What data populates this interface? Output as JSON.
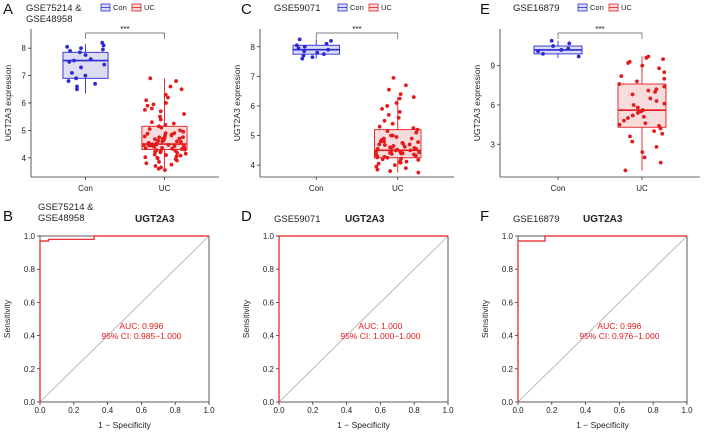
{
  "colors": {
    "con": "#2b2bd6",
    "uc": "#e41a1c",
    "box_con_fill": "#dcdcf3",
    "box_uc_fill": "#f8dcdc",
    "roc": "#e41a1c",
    "diag": "#aaaaaa"
  },
  "legend": {
    "con": "Con",
    "uc": "UC"
  },
  "significance": "***",
  "boxplot_xlabels": [
    "Con",
    "UC"
  ],
  "roc_common": {
    "gene": "UGT2A3",
    "xlabel": "1 − Specificity",
    "ylabel": "Sensitivity",
    "xticks": [
      "0.0",
      "0.2",
      "0.4",
      "0.6",
      "0.8",
      "1.0"
    ],
    "yticks": [
      "0.0",
      "0.2",
      "0.4",
      "0.6",
      "0.8",
      "1.0"
    ]
  },
  "chart_data": [
    {
      "panel": "A",
      "type": "box",
      "dataset_lines": [
        "GSE75214 &",
        "GSE48958"
      ],
      "ylabel": "UGT2A3 expression",
      "ylim": [
        3.3,
        8.7
      ],
      "yticks": [
        "4",
        "5",
        "6",
        "7",
        "8"
      ],
      "categories": [
        "Con",
        "UC"
      ],
      "boxes": [
        {
          "q1": 6.9,
          "median": 7.55,
          "q3": 7.85,
          "whisker_low": 6.35,
          "whisker_high": 8.15
        },
        {
          "q1": 4.3,
          "median": 4.5,
          "q3": 5.15,
          "whisker_low": 3.6,
          "whisker_high": 6.9
        }
      ],
      "points": [
        [
          8.2,
          8.1,
          8.05,
          8.0,
          7.95,
          7.9,
          7.85,
          7.75,
          7.6,
          7.55,
          7.5,
          7.4,
          7.3,
          7.1,
          7.0,
          6.9,
          6.8,
          6.7,
          6.6,
          6.5
        ],
        [
          6.9,
          6.8,
          6.6,
          6.5,
          6.3,
          6.2,
          6.1,
          6.0,
          5.95,
          5.9,
          5.8,
          5.75,
          5.7,
          5.6,
          5.5,
          5.4,
          5.3,
          5.25,
          5.2,
          5.15,
          5.1,
          5.05,
          5.0,
          4.95,
          4.9,
          4.88,
          4.85,
          4.82,
          4.8,
          4.78,
          4.75,
          4.72,
          4.7,
          4.68,
          4.65,
          4.62,
          4.6,
          4.58,
          4.55,
          4.53,
          4.5,
          4.5,
          4.48,
          4.47,
          4.46,
          4.45,
          4.43,
          4.42,
          4.4,
          4.38,
          4.36,
          4.35,
          4.33,
          4.32,
          4.3,
          4.28,
          4.26,
          4.25,
          4.22,
          4.2,
          4.18,
          4.15,
          4.12,
          4.1,
          4.08,
          4.05,
          4.02,
          4.0,
          3.98,
          3.95,
          3.9,
          3.85,
          3.8,
          3.75,
          3.7,
          3.65,
          3.6,
          3.55,
          4.45,
          4.52,
          4.6,
          4.7,
          4.75,
          4.9
        ]
      ]
    },
    {
      "panel": "C",
      "type": "box",
      "dataset_lines": [
        "GSE59071"
      ],
      "ylabel": "UGT2A3 expression",
      "ylim": [
        3.6,
        8.6
      ],
      "yticks": [
        "4",
        "5",
        "6",
        "7",
        "8"
      ],
      "categories": [
        "Con",
        "UC"
      ],
      "boxes": [
        {
          "q1": 7.75,
          "median": 7.9,
          "q3": 8.05,
          "whisker_low": 7.6,
          "whisker_high": 8.25
        },
        {
          "q1": 4.25,
          "median": 4.5,
          "q3": 5.2,
          "whisker_low": 3.75,
          "whisker_high": 6.3
        }
      ],
      "points": [
        [
          8.25,
          8.2,
          8.1,
          8.05,
          8.0,
          7.95,
          7.9,
          7.85,
          7.8,
          7.75,
          7.7,
          7.65,
          7.6
        ],
        [
          6.95,
          6.7,
          6.55,
          6.4,
          6.3,
          6.25,
          6.1,
          6.0,
          5.9,
          5.8,
          5.7,
          5.6,
          5.5,
          5.4,
          5.3,
          5.25,
          5.2,
          5.15,
          5.1,
          5.0,
          4.95,
          4.9,
          4.85,
          4.8,
          4.78,
          4.75,
          4.72,
          4.7,
          4.68,
          4.65,
          4.62,
          4.6,
          4.58,
          4.55,
          4.52,
          4.5,
          4.48,
          4.46,
          4.45,
          4.43,
          4.42,
          4.4,
          4.38,
          4.36,
          4.35,
          4.32,
          4.3,
          4.28,
          4.26,
          4.25,
          4.22,
          4.2,
          4.18,
          4.15,
          4.12,
          4.1,
          4.08,
          4.05,
          4.0,
          3.95,
          3.9,
          3.85,
          3.8,
          3.75,
          4.5,
          4.55,
          4.6,
          4.7,
          4.8,
          4.9,
          5.0,
          4.4
        ]
      ]
    },
    {
      "panel": "E",
      "type": "box",
      "dataset_lines": [
        "GSE16879"
      ],
      "ylabel": "UGT2A3 expression",
      "ylim": [
        0.5,
        11.8
      ],
      "yticks": [
        "3",
        "6",
        "9"
      ],
      "ytick_values": [
        3,
        6,
        9
      ],
      "categories": [
        "Con",
        "UC"
      ],
      "boxes": [
        {
          "q1": 9.9,
          "median": 10.2,
          "q3": 10.5,
          "whisker_low": 9.6,
          "whisker_high": 10.9
        },
        {
          "q1": 4.3,
          "median": 5.6,
          "q3": 7.6,
          "whisker_low": 1.0,
          "whisker_high": 9.7
        }
      ],
      "points": [
        [
          10.9,
          10.7,
          10.5,
          10.3,
          10.2,
          10.1,
          9.9,
          9.7
        ],
        [
          9.7,
          9.6,
          9.5,
          9.3,
          9.2,
          9.0,
          8.8,
          8.5,
          8.2,
          8.0,
          7.8,
          7.6,
          7.4,
          7.2,
          7.0,
          6.8,
          6.5,
          6.3,
          6.0,
          5.8,
          5.6,
          5.5,
          5.4,
          5.2,
          5.0,
          4.8,
          4.6,
          4.4,
          4.2,
          4.0,
          3.8,
          3.6,
          3.2,
          2.8,
          2.4,
          2.0,
          1.6,
          1.0,
          6.1,
          7.1,
          5.1,
          4.5
        ]
      ]
    },
    {
      "panel": "B",
      "type": "roc",
      "dataset_lines": [
        "GSE75214 &",
        "GSE48958"
      ],
      "auc_text": "AUC: 0.996",
      "ci_text": "95% CI: 0.985−1.000",
      "curve": [
        [
          0,
          0
        ],
        [
          0,
          0.97
        ],
        [
          0.05,
          0.97
        ],
        [
          0.05,
          0.98
        ],
        [
          0.32,
          0.98
        ],
        [
          0.32,
          1.0
        ],
        [
          1,
          1
        ]
      ]
    },
    {
      "panel": "D",
      "type": "roc",
      "dataset_lines": [
        "GSE59071"
      ],
      "auc_text": "AUC: 1.000",
      "ci_text": "95% CI: 1.000−1.000",
      "curve": [
        [
          0,
          0
        ],
        [
          0,
          1.0
        ],
        [
          1,
          1
        ]
      ]
    },
    {
      "panel": "F",
      "type": "roc",
      "dataset_lines": [
        "GSE16879"
      ],
      "auc_text": "AUC: 0.996",
      "ci_text": "95% CI: 0.976−1.000",
      "curve": [
        [
          0,
          0
        ],
        [
          0,
          0.97
        ],
        [
          0.16,
          0.97
        ],
        [
          0.16,
          1.0
        ],
        [
          1,
          1
        ]
      ]
    }
  ]
}
